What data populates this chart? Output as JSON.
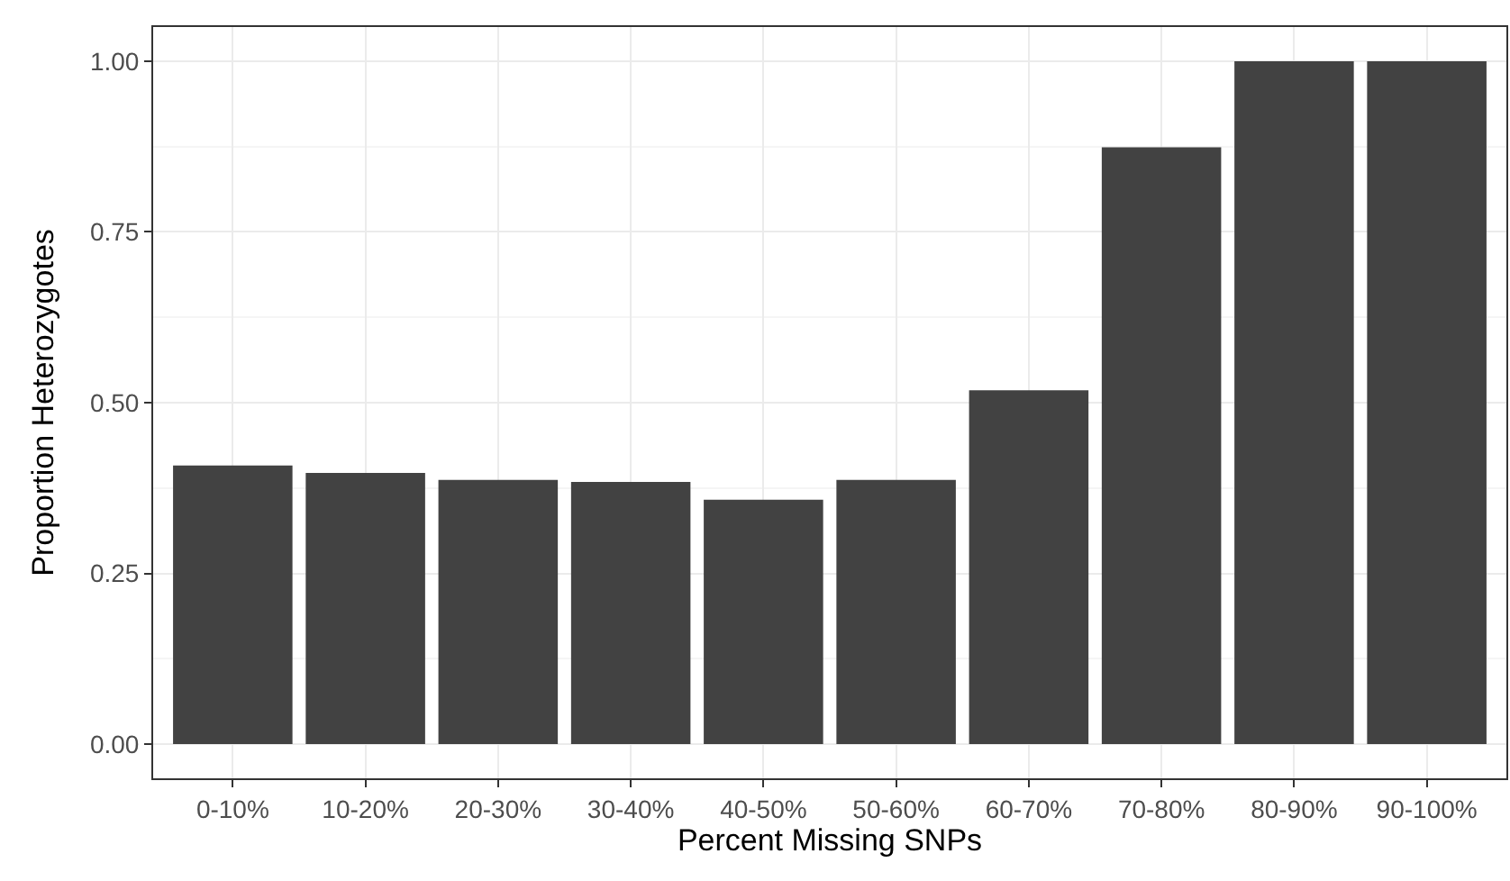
{
  "chart_data": {
    "type": "bar",
    "xlabel": "Percent Missing SNPs",
    "ylabel": "Proportion Heterozygotes",
    "categories": [
      "0-10%",
      "10-20%",
      "20-30%",
      "30-40%",
      "40-50%",
      "50-60%",
      "60-70%",
      "70-80%",
      "80-90%",
      "90-100%"
    ],
    "values": [
      0.408,
      0.397,
      0.387,
      0.384,
      0.358,
      0.387,
      0.518,
      0.874,
      1.0,
      1.0
    ],
    "color": "#424242",
    "ylim": [
      -0.05,
      1.05
    ],
    "yticks": [
      {
        "value": 0,
        "label": "0.00"
      },
      {
        "value": 0.25,
        "label": "0.25"
      },
      {
        "value": 0.5,
        "label": "0.50"
      },
      {
        "value": 0.75,
        "label": "0.75"
      },
      {
        "value": 1,
        "label": "1.00"
      }
    ],
    "grid": true
  }
}
